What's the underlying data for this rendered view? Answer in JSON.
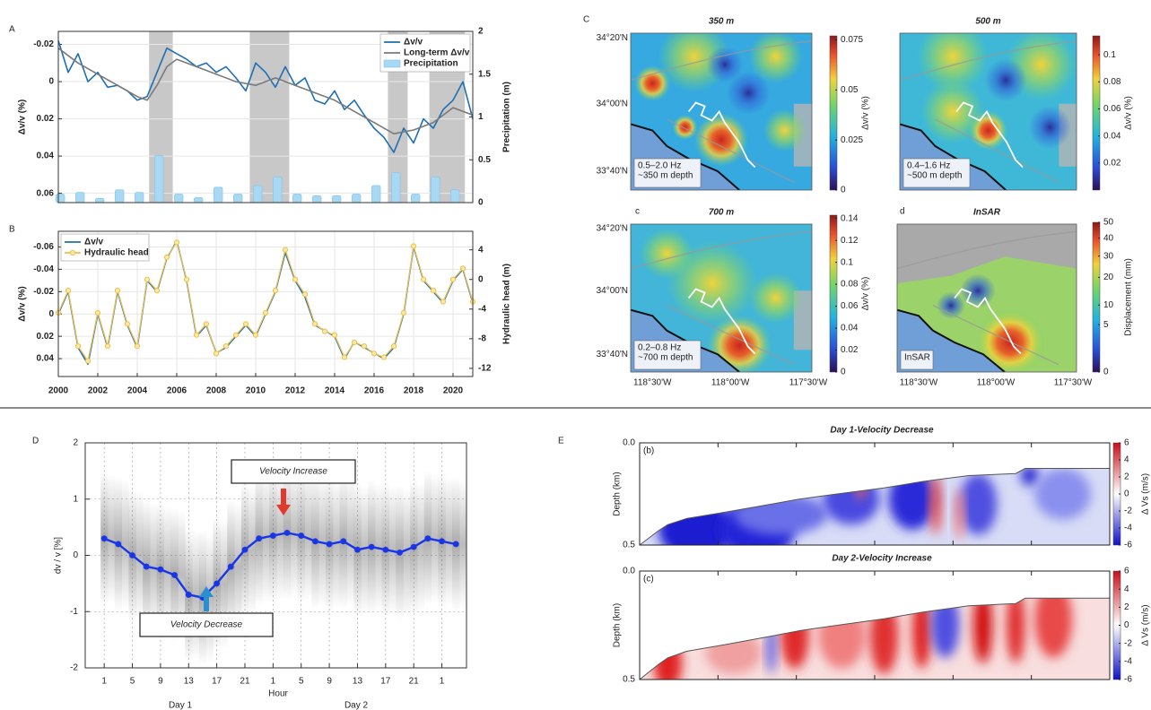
{
  "chart_data": [
    {
      "type": "timeseries",
      "panel": "A",
      "ylabel": "Δv/v (%)",
      "y2label": "Precipitation (m)",
      "xlim": [
        2000,
        2021
      ],
      "ylim": [
        -0.027,
        0.065
      ],
      "y_inverted": true,
      "yticks": [
        -0.02,
        0,
        0.02,
        0.04,
        0.06
      ],
      "y2lim": [
        0,
        2
      ],
      "y2ticks": [
        0,
        0.5,
        1,
        1.5,
        2
      ],
      "grid": true,
      "legend": "upper right",
      "axis_colors": {
        "y": "#1f6fb4",
        "y2": "#5db5e6"
      },
      "shaded_spans": [
        [
          2004.6,
          2005.8
        ],
        [
          2009.7,
          2011.7
        ],
        [
          2016.7,
          2017.7
        ],
        [
          2018.8,
          2020.6
        ]
      ],
      "shade_color": "#c8c8c8",
      "series": [
        {
          "name": "Δv/v",
          "type": "line",
          "color": "#1f6fb4",
          "x": [
            2000,
            2000.5,
            2001,
            2001.5,
            2002,
            2002.5,
            2003,
            2003.5,
            2004,
            2004.5,
            2005,
            2005.5,
            2006,
            2006.5,
            2007,
            2007.5,
            2008,
            2008.5,
            2009,
            2009.5,
            2010,
            2010.5,
            2011,
            2011.5,
            2012,
            2012.5,
            2013,
            2013.5,
            2014,
            2014.5,
            2015,
            2015.5,
            2016,
            2016.5,
            2017,
            2017.5,
            2018,
            2018.5,
            2019,
            2019.5,
            2020,
            2020.5,
            2021
          ],
          "values": [
            -0.022,
            -0.005,
            -0.015,
            0.0,
            -0.005,
            0.003,
            0.002,
            0.005,
            0.01,
            0.008,
            -0.005,
            -0.018,
            -0.015,
            -0.012,
            -0.008,
            -0.01,
            -0.005,
            -0.008,
            -0.002,
            0.005,
            -0.01,
            -0.005,
            0.003,
            -0.008,
            0.002,
            -0.002,
            0.01,
            0.012,
            0.005,
            0.015,
            0.01,
            0.018,
            0.025,
            0.03,
            0.038,
            0.025,
            0.033,
            0.02,
            0.025,
            0.015,
            0.01,
            0.0,
            0.02
          ]
        },
        {
          "name": "Long-term Δv/v",
          "type": "line",
          "color": "#7a7a7a",
          "x": [
            2000,
            2001,
            2002,
            2003,
            2004,
            2004.5,
            2005,
            2005.5,
            2006,
            2007,
            2008,
            2009,
            2010,
            2011,
            2012,
            2013,
            2014,
            2015,
            2016,
            2017,
            2018,
            2019,
            2020,
            2021
          ],
          "values": [
            -0.018,
            -0.01,
            -0.004,
            0.002,
            0.008,
            0.01,
            0.002,
            -0.008,
            -0.012,
            -0.008,
            -0.004,
            0.0,
            0.002,
            -0.002,
            0.002,
            0.006,
            0.01,
            0.016,
            0.022,
            0.028,
            0.026,
            0.022,
            0.014,
            0.018
          ]
        },
        {
          "name": "Precipitation",
          "type": "bar",
          "axis": "y2",
          "color": "#a9d8f2",
          "x": [
            2000.1,
            2001.1,
            2002.1,
            2003.1,
            2004.1,
            2005.1,
            2006.1,
            2007.1,
            2008.1,
            2009.1,
            2010.1,
            2011.1,
            2012.1,
            2013.1,
            2014.1,
            2015.1,
            2016.1,
            2017.1,
            2018.1,
            2019.1,
            2020.1
          ],
          "values": [
            0.1,
            0.12,
            0.05,
            0.15,
            0.12,
            0.55,
            0.1,
            0.06,
            0.18,
            0.1,
            0.2,
            0.3,
            0.1,
            0.08,
            0.08,
            0.1,
            0.2,
            0.35,
            0.1,
            0.3,
            0.15
          ]
        }
      ]
    },
    {
      "type": "timeseries",
      "panel": "B",
      "ylabel": "Δv/v (%)",
      "y2label": "Hydraulic head (m)",
      "xlim": [
        2000,
        2021
      ],
      "xticks": [
        2000,
        2002,
        2004,
        2006,
        2008,
        2010,
        2012,
        2014,
        2016,
        2018,
        2020
      ],
      "ylim": [
        -0.074,
        0.056
      ],
      "y_inverted": true,
      "yticks": [
        -0.06,
        -0.04,
        -0.02,
        0,
        0.02,
        0.04
      ],
      "y2lim": [
        -13.1,
        6.5
      ],
      "y2ticks": [
        -12,
        -8,
        -4,
        0,
        4
      ],
      "grid": true,
      "legend": "upper left",
      "axis_colors": {
        "y": "#1f6fb4",
        "y2": "#e8b53a"
      },
      "series": [
        {
          "name": "Δv/v",
          "type": "line",
          "color": "#1f6fb4",
          "x": [
            2000,
            2000.5,
            2001,
            2001.5,
            2002,
            2002.5,
            2003,
            2003.5,
            2004,
            2004.5,
            2005,
            2005.5,
            2006,
            2006.5,
            2007,
            2007.5,
            2008,
            2008.5,
            2009,
            2009.5,
            2010,
            2010.5,
            2011,
            2011.5,
            2012,
            2012.5,
            2013,
            2013.5,
            2014,
            2014.5,
            2015,
            2015.5,
            2016,
            2016.5,
            2017,
            2017.5,
            2018,
            2018.5,
            2019,
            2019.5,
            2020,
            2020.5,
            2021
          ],
          "values": [
            0.0,
            -0.02,
            0.03,
            0.045,
            0.0,
            0.03,
            -0.02,
            0.01,
            0.03,
            -0.03,
            -0.02,
            -0.05,
            -0.065,
            -0.03,
            0.02,
            0.01,
            0.035,
            0.03,
            0.02,
            0.01,
            0.02,
            0.0,
            -0.02,
            -0.055,
            -0.03,
            -0.015,
            0.01,
            0.015,
            0.02,
            0.04,
            0.025,
            0.03,
            0.035,
            0.04,
            0.03,
            0.0,
            -0.06,
            -0.03,
            -0.02,
            -0.01,
            -0.03,
            -0.04,
            -0.01
          ]
        },
        {
          "name": "Hydraulic head",
          "type": "line",
          "marker": "circle",
          "axis": "y2",
          "color": "#eec04a",
          "x": [
            2000,
            2000.5,
            2001,
            2001.5,
            2002,
            2002.5,
            2003,
            2003.5,
            2004,
            2004.5,
            2005,
            2005.5,
            2006,
            2006.5,
            2007,
            2007.5,
            2008,
            2008.5,
            2009,
            2009.5,
            2010,
            2010.5,
            2011,
            2011.5,
            2012,
            2012.5,
            2013,
            2013.5,
            2014,
            2014.5,
            2015,
            2015.5,
            2016,
            2016.5,
            2017,
            2017.5,
            2018,
            2018.5,
            2019,
            2019.5,
            2020,
            2020.5,
            2021
          ],
          "values": [
            -4.5,
            -1.5,
            -9,
            -11,
            -4.5,
            -9,
            -1.5,
            -6,
            -9,
            0,
            -1.5,
            3,
            5,
            0,
            -7.5,
            -6,
            -10,
            -9,
            -7.5,
            -6,
            -7.5,
            -4.5,
            -1.5,
            4,
            0,
            -2,
            -6,
            -7,
            -7.5,
            -10.5,
            -8.5,
            -9,
            -10,
            -10.5,
            -9,
            -4.5,
            4.5,
            0,
            -1.5,
            -3,
            0,
            1.5,
            -3
          ]
        }
      ]
    },
    {
      "type": "map",
      "panel": "C",
      "title": "350 m",
      "note": [
        "0.5–2.0 Hz",
        "~350 m depth"
      ],
      "lat_labels": [
        "34°20'N",
        "34°00'N",
        "33°40'N"
      ],
      "colorbar": {
        "label": "Δv/v (%)",
        "clim": [
          0,
          0.077
        ],
        "ticks": [
          0,
          0.025,
          0.05,
          0.075
        ],
        "scale": "linear"
      }
    },
    {
      "type": "map",
      "title": "500 m",
      "note": [
        "0.4–1.6 Hz",
        "~500 m depth"
      ],
      "colorbar": {
        "label": "Δv/v (%)",
        "clim": [
          0,
          0.114
        ],
        "ticks": [
          0.02,
          0.04,
          0.06,
          0.08,
          0.1
        ],
        "scale": "linear"
      }
    },
    {
      "type": "map",
      "panel": "c",
      "title": "700 m",
      "note": [
        "0.2–0.8 Hz",
        "~700 m depth"
      ],
      "lat_labels": [
        "34°20'N",
        "34°00'N",
        "33°40'N"
      ],
      "lon_labels": [
        "118°30'W",
        "118°00'W",
        "117°30'W"
      ],
      "colorbar": {
        "label": "Δv/v (%)",
        "clim": [
          0,
          0.143
        ],
        "ticks": [
          0,
          0.02,
          0.04,
          0.06,
          0.08,
          0.1,
          0.12,
          0.14
        ],
        "scale": "linear"
      }
    },
    {
      "type": "map",
      "panel": "d",
      "title": "InSAR",
      "note": [
        "InSAR"
      ],
      "lon_labels": [
        "118°30'W",
        "118°00'W",
        "117°30'W"
      ],
      "colorbar": {
        "label": "Displacement (mm)",
        "clim": [
          0,
          50
        ],
        "ticks": [
          0,
          5,
          10,
          20,
          30,
          40,
          50
        ],
        "scale": "sqrt"
      }
    },
    {
      "type": "line",
      "panel": "D",
      "ylabel": "dv / v [%]",
      "xlabel": "Hour",
      "ylim": [
        -2,
        2
      ],
      "yticks": [
        -2,
        -1,
        0,
        1,
        2
      ],
      "xlim": [
        -1.7,
        52.5
      ],
      "xticks": [
        1,
        5,
        9,
        13,
        17,
        21,
        {
          "value": 25,
          "label": "1"
        },
        {
          "value": 29,
          "label": "5"
        },
        {
          "value": 33,
          "label": "9"
        },
        {
          "value": 37,
          "label": "13"
        },
        {
          "value": 41,
          "label": "17"
        },
        {
          "value": 45,
          "label": "21"
        },
        {
          "value": 49,
          "label": "1"
        }
      ],
      "grid": true,
      "day_labels": [
        "Day 1",
        "Day 2"
      ],
      "annotations": [
        "Velocity Increase",
        "Velocity Decrease"
      ],
      "series": [
        {
          "color": "#1a35e6",
          "x": [
            1,
            3,
            5,
            7,
            9,
            11,
            13,
            15,
            17,
            19,
            21,
            23,
            25,
            27,
            29,
            31,
            33,
            35,
            37,
            39,
            41,
            43,
            45,
            47,
            49,
            51
          ],
          "values": [
            0.3,
            0.2,
            0.0,
            -0.2,
            -0.25,
            -0.35,
            -0.7,
            -0.75,
            -0.5,
            -0.2,
            0.1,
            0.3,
            0.35,
            0.4,
            0.35,
            0.25,
            0.2,
            0.25,
            0.1,
            0.15,
            0.1,
            0.05,
            0.15,
            0.3,
            0.25,
            0.2
          ]
        }
      ]
    },
    {
      "type": "heatmap",
      "panel": "E",
      "title": "Day 1-Velocity Decrease",
      "subpanel": "(b)",
      "ylabel": "Depth (km)",
      "ylim": [
        0,
        0.5
      ],
      "yticks": [
        {
          "value": 0,
          "label": "0.0"
        },
        {
          "value": 0.5,
          "label": "0.5"
        }
      ],
      "colorbar": {
        "label": "Δ Vs (m/s)",
        "clim": [
          -6,
          6
        ],
        "ticks": [
          -6,
          -4,
          -2,
          0,
          2,
          4,
          6
        ]
      }
    },
    {
      "type": "heatmap",
      "title": "Day 2-Velocity Increase",
      "subpanel": "(c)",
      "ylabel": "Depth (km)",
      "ylim": [
        0,
        0.5
      ],
      "yticks": [
        {
          "value": 0,
          "label": "0.0"
        },
        {
          "value": 0.5,
          "label": "0.5"
        }
      ],
      "colorbar": {
        "label": "Δ Vs (m/s)",
        "clim": [
          -6,
          6
        ],
        "ticks": [
          -6,
          -4,
          -2,
          0,
          2,
          4,
          6
        ]
      }
    }
  ]
}
